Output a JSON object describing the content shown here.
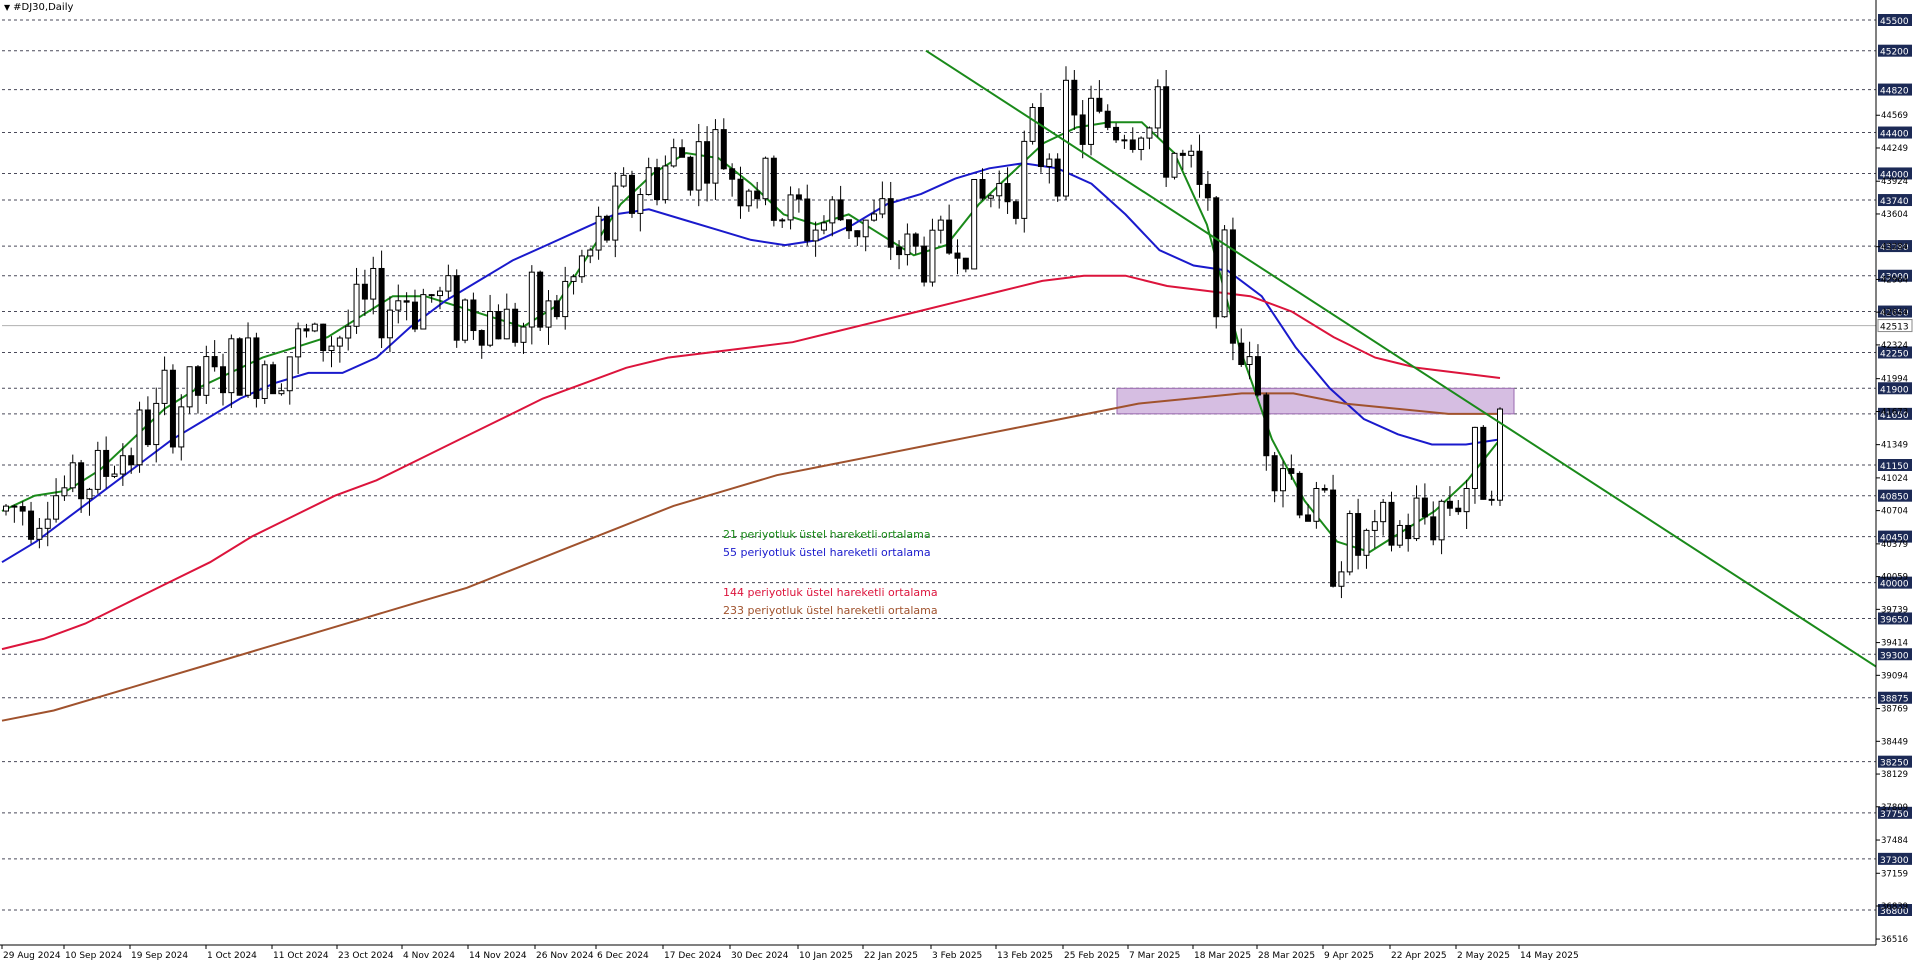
{
  "title": "#DJ30,Daily",
  "legend": [
    {
      "label": "21 periyotluk üstel hareketli ortalama",
      "color": "#1a8a1a"
    },
    {
      "label": "55 periyotluk üstel hareketli ortalama",
      "color": "#1a1acc"
    },
    {
      "label": "144 periyotluk üstel hareketli ortalama",
      "color": "#dc143c"
    },
    {
      "label": "233 periyotluk üstel hareketli ortalama",
      "color": "#a0522d"
    }
  ],
  "chart_data": {
    "type": "candlestick",
    "ylim": [
      36516,
      45600
    ],
    "current_price": "42513",
    "levels": [
      "45500",
      "45200",
      "44820",
      "44400",
      "44000",
      "43740",
      "43290",
      "43000",
      "42650",
      "42250",
      "41900",
      "41650",
      "41150",
      "40850",
      "40450",
      "40000",
      "39650",
      "39300",
      "38875",
      "38250",
      "37750",
      "37300",
      "36800"
    ],
    "scale_ticks": [
      "44569",
      "44249",
      "43924",
      "43604",
      "43284",
      "42964",
      "42644",
      "42324",
      "41994",
      "41673",
      "41349",
      "41024",
      "40704",
      "40379",
      "40059",
      "39739",
      "39414",
      "39094",
      "38769",
      "38449",
      "38129",
      "37809",
      "37484",
      "37159",
      "36839",
      "36516"
    ],
    "x_labels": [
      "29 Aug 2024",
      "10 Sep 2024",
      "19 Sep 2024",
      "1 Oct 2024",
      "11 Oct 2024",
      "23 Oct 2024",
      "4 Nov 2024",
      "14 Nov 2024",
      "26 Nov 2024",
      "6 Dec 2024",
      "17 Dec 2024",
      "30 Dec 2024",
      "10 Jan 2025",
      "22 Jan 2025",
      "3 Feb 2025",
      "13 Feb 2025",
      "25 Feb 2025",
      "7 Mar 2025",
      "18 Mar 2025",
      "28 Mar 2025",
      "9 Apr 2025",
      "22 Apr 2025",
      "2 May 2025",
      "14 May 2025"
    ],
    "ema": [
      {
        "name": "21 periyotluk üstel hareketli ortalama",
        "color": "#1a8a1a",
        "values": [
          40700,
          40850,
          40900,
          41100,
          41400,
          41700,
          41900,
          42050,
          42200,
          42300,
          42400,
          42600,
          42800,
          42800,
          42700,
          42600,
          42500,
          42700,
          43200,
          43700,
          44000,
          44200,
          44150,
          43900,
          43600,
          43500,
          43600,
          43400,
          43200,
          43300,
          43700,
          44000,
          44300,
          44450,
          44500,
          44500,
          44200,
          43500,
          42300,
          41400,
          40800,
          40400,
          40300,
          40500,
          40700,
          41000,
          41400
        ]
      },
      {
        "name": "55 periyotluk üstel hareketli ortalama",
        "color": "#1a1acc",
        "values": [
          40200,
          40400,
          40650,
          40900,
          41150,
          41400,
          41600,
          41800,
          41950,
          42050,
          42050,
          42200,
          42500,
          42750,
          42950,
          43150,
          43300,
          43450,
          43600,
          43650,
          43550,
          43450,
          43350,
          43300,
          43350,
          43500,
          43700,
          43800,
          43950,
          44050,
          44100,
          44050,
          43900,
          43600,
          43250,
          43100,
          43050,
          42800,
          42300,
          41900,
          41600,
          41450,
          41350,
          41350,
          41400
        ]
      },
      {
        "name": "144 periyotluk üstel hareketli ortalama",
        "color": "#dc143c",
        "values": [
          39350,
          39450,
          39600,
          39800,
          40000,
          40200,
          40450,
          40650,
          40850,
          41000,
          41200,
          41400,
          41600,
          41800,
          41950,
          42100,
          42200,
          42250,
          42300,
          42350,
          42450,
          42550,
          42650,
          42750,
          42850,
          42950,
          43000,
          43000,
          42900,
          42850,
          42800,
          42650,
          42400,
          42200,
          42100,
          42050,
          42000
        ]
      },
      {
        "name": "233 periyotluk üstel hareketli ortalama",
        "color": "#a0522d",
        "values": [
          38650,
          38750,
          38900,
          39050,
          39200,
          39350,
          39500,
          39650,
          39800,
          39950,
          40150,
          40350,
          40550,
          40750,
          40900,
          41050,
          41150,
          41250,
          41350,
          41450,
          41550,
          41650,
          41750,
          41800,
          41850,
          41850,
          41750,
          41700,
          41650,
          41650
        ]
      }
    ],
    "trendline": {
      "from": {
        "date": "3 Feb 2025",
        "value": 45200
      },
      "to_edge_value": 39180
    },
    "zone": {
      "low": 41650,
      "high": 41900
    }
  }
}
